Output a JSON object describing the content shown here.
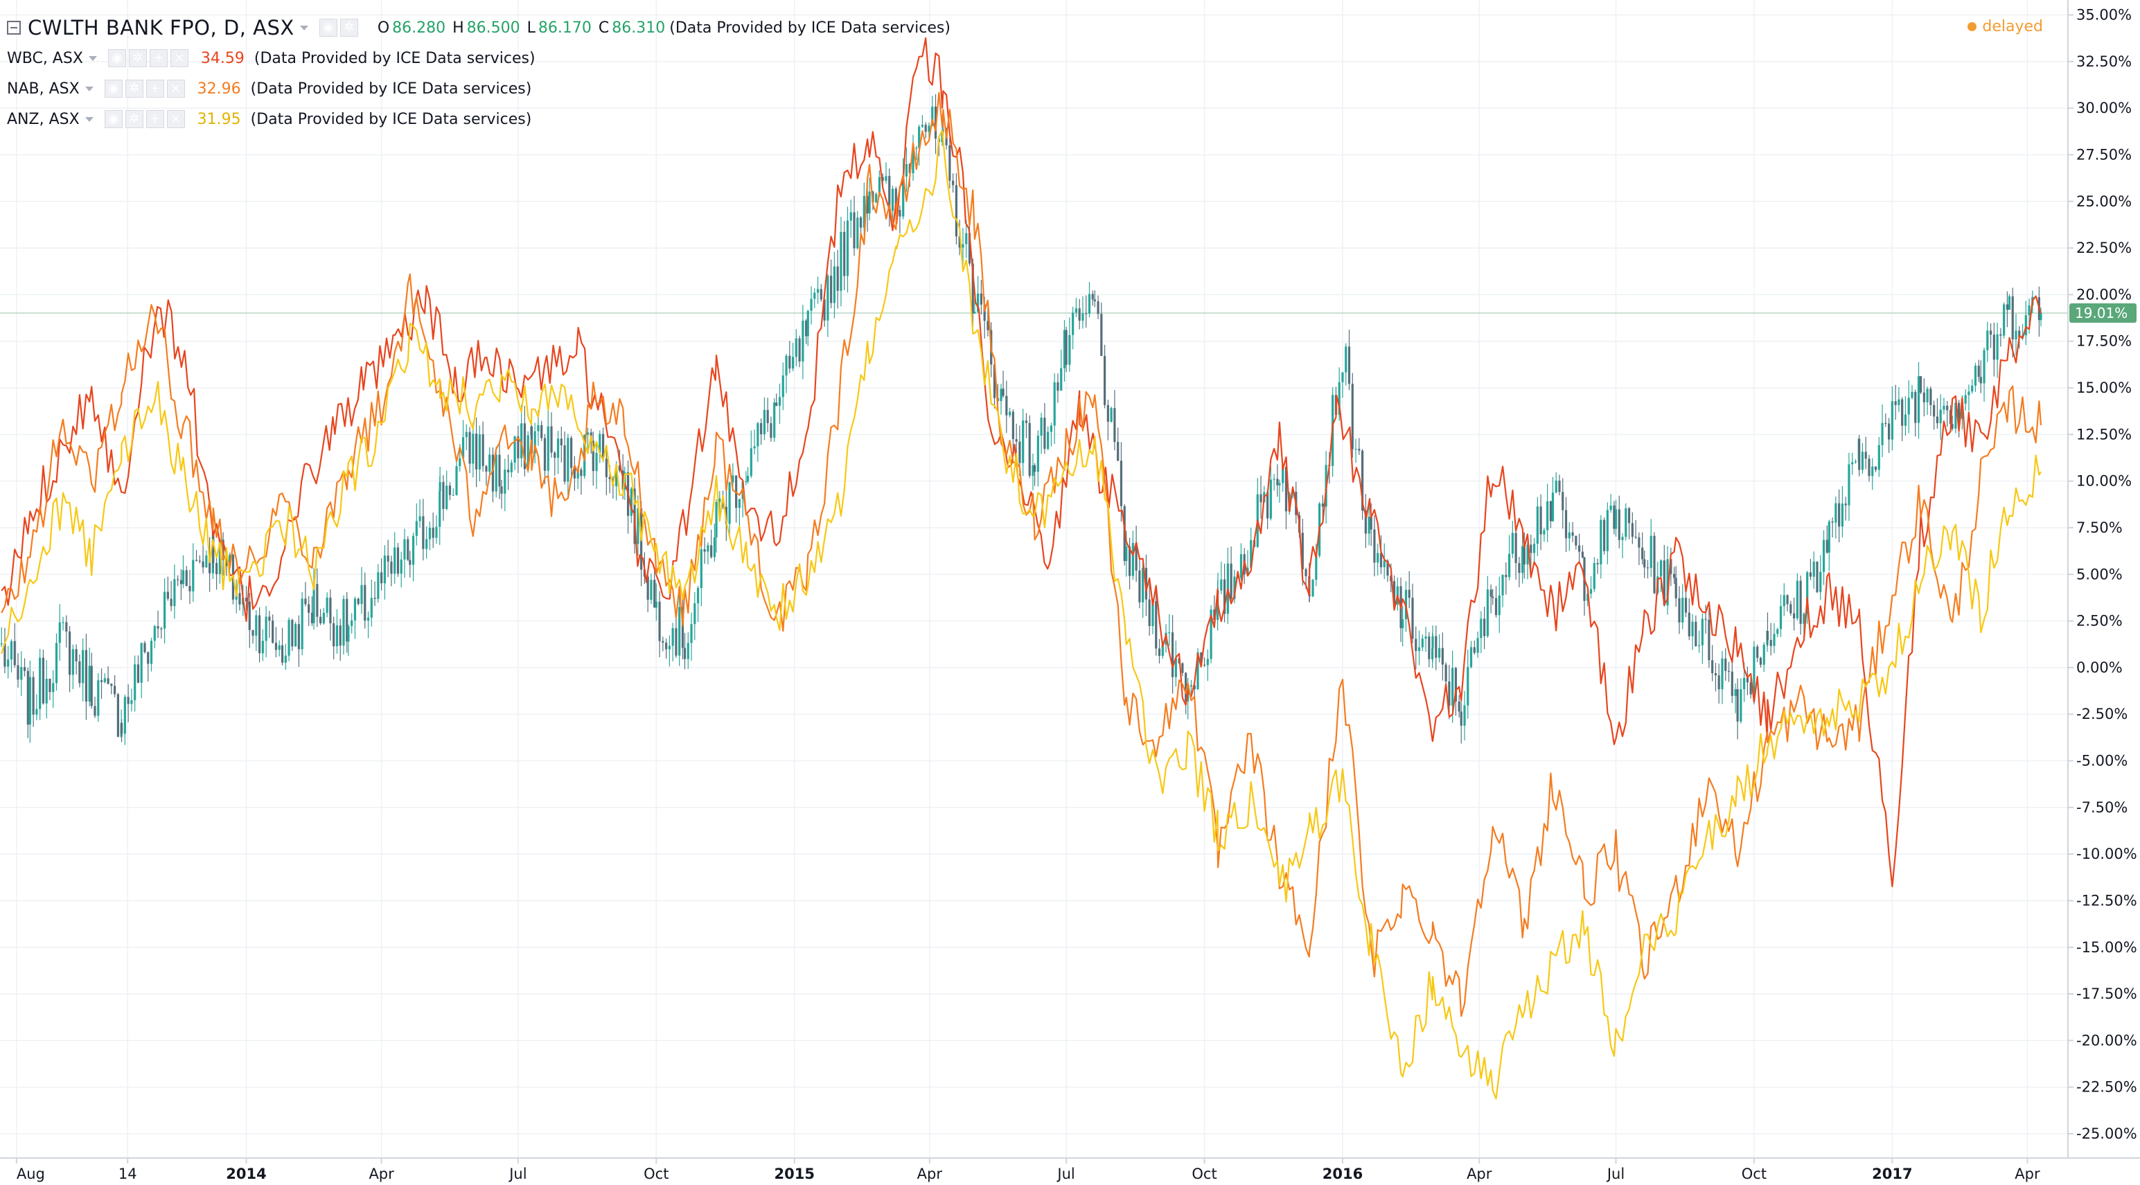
{
  "header": {
    "title": "CWLTH BANK FPO, D, ASX",
    "ohlc": [
      {
        "key": "O",
        "value": "86.280"
      },
      {
        "key": "H",
        "value": "86.500"
      },
      {
        "key": "L",
        "value": "86.170"
      },
      {
        "key": "C",
        "value": "86.310"
      }
    ],
    "provider": "(Data Provided by ICE Data services)",
    "status": "delayed"
  },
  "compare": [
    {
      "symbol": "WBC, ASX",
      "value": "34.59",
      "color": "#e8451e",
      "provider": "(Data Provided by ICE Data services)"
    },
    {
      "symbol": "NAB, ASX",
      "value": "32.96",
      "color": "#f57c1f",
      "provider": "(Data Provided by ICE Data services)"
    },
    {
      "symbol": "ANZ, ASX",
      "value": "31.95",
      "color": "#f7c815",
      "provider": "(Data Provided by ICE Data services)"
    }
  ],
  "colors": {
    "up": "#26a69a",
    "down": "#546e7a",
    "grid": "#eef1f5",
    "axis": "#d0d4db",
    "last_price_label": "#5aa77a",
    "text": "#131722"
  },
  "chart_data": {
    "type": "line",
    "x_axis_labels": [
      "Aug",
      "14",
      "2014",
      "Apr",
      "Jul",
      "Oct",
      "2015",
      "Apr",
      "Jul",
      "Oct",
      "2016",
      "Apr",
      "Jul",
      "Oct",
      "2017",
      "Apr"
    ],
    "x_axis_dates": [
      "2013-08-01",
      "2013-10-14",
      "2014-01-01",
      "2014-04-01",
      "2014-07-01",
      "2014-10-01",
      "2015-01-01",
      "2015-04-01",
      "2015-07-01",
      "2015-10-01",
      "2016-01-01",
      "2016-04-01",
      "2016-07-01",
      "2016-10-01",
      "2017-01-01",
      "2017-04-01"
    ],
    "y_ticks": [
      "35.00%",
      "32.50%",
      "30.00%",
      "27.50%",
      "25.00%",
      "22.50%",
      "20.00%",
      "17.50%",
      "15.00%",
      "12.50%",
      "10.00%",
      "7.50%",
      "5.00%",
      "2.50%",
      "0.00%",
      "-2.50%",
      "-5.00%",
      "-7.50%",
      "-10.00%",
      "-12.50%",
      "-15.00%",
      "-17.50%",
      "-20.00%",
      "-22.50%",
      "-25.00%"
    ],
    "ylim": [
      -26.3,
      35.8
    ],
    "xlim": [
      "2013-07-21",
      "2017-04-28"
    ],
    "last_value_label": "19.01%",
    "last_value": 19.01,
    "grid": true,
    "series": [
      {
        "name": "CWLTH BANK FPO, D, ASX",
        "style": "candles",
        "x": [
          "2013-07-22",
          "2013-08-10",
          "2013-09-01",
          "2013-09-20",
          "2013-10-10",
          "2013-11-01",
          "2013-11-20",
          "2013-12-10",
          "2014-01-01",
          "2014-01-25",
          "2014-02-15",
          "2014-03-10",
          "2014-04-01",
          "2014-04-20",
          "2014-05-10",
          "2014-06-01",
          "2014-06-20",
          "2014-07-10",
          "2014-08-01",
          "2014-08-20",
          "2014-09-10",
          "2014-10-01",
          "2014-10-20",
          "2014-11-10",
          "2014-12-01",
          "2014-12-20",
          "2015-01-10",
          "2015-02-01",
          "2015-02-20",
          "2015-03-10",
          "2015-03-25",
          "2015-04-10",
          "2015-05-01",
          "2015-05-20",
          "2015-06-10",
          "2015-07-01",
          "2015-07-20",
          "2015-08-10",
          "2015-09-01",
          "2015-09-20",
          "2015-10-10",
          "2015-11-01",
          "2015-11-20",
          "2015-12-10",
          "2016-01-01",
          "2016-01-20",
          "2016-02-10",
          "2016-03-01",
          "2016-03-20",
          "2016-04-10",
          "2016-05-01",
          "2016-05-20",
          "2016-06-10",
          "2016-07-01",
          "2016-07-20",
          "2016-08-10",
          "2016-09-01",
          "2016-09-20",
          "2016-10-10",
          "2016-11-01",
          "2016-11-20",
          "2016-12-10",
          "2017-01-01",
          "2017-01-20",
          "2017-02-10",
          "2017-03-01",
          "2017-03-20",
          "2017-04-10"
        ],
        "values": [
          1.0,
          -2.0,
          1.5,
          -1.0,
          -2.5,
          2.0,
          5.0,
          6.5,
          3.0,
          1.0,
          3.5,
          2.0,
          4.5,
          6.0,
          9.0,
          12.0,
          10.0,
          12.5,
          11.0,
          12.0,
          10.0,
          3.0,
          1.5,
          8.0,
          11.0,
          14.0,
          18.0,
          22.0,
          26.0,
          24.5,
          30.0,
          27.5,
          20.0,
          14.0,
          11.0,
          17.0,
          19.5,
          6.0,
          2.0,
          -1.0,
          3.0,
          7.0,
          11.0,
          5.0,
          17.0,
          6.0,
          3.0,
          0.5,
          -2.0,
          4.0,
          7.0,
          9.0,
          5.0,
          8.0,
          6.0,
          4.0,
          1.0,
          -1.5,
          2.0,
          3.5,
          7.0,
          11.0,
          13.0,
          15.0,
          14.0,
          16.0,
          19.0,
          19.01
        ]
      },
      {
        "name": "WBC, ASX",
        "style": "line",
        "color": "#e8451e",
        "x": [
          "2013-07-22",
          "2013-08-10",
          "2013-09-01",
          "2013-09-20",
          "2013-10-10",
          "2013-10-25",
          "2013-11-10",
          "2013-11-25",
          "2013-12-10",
          "2014-01-01",
          "2014-01-20",
          "2014-02-10",
          "2014-03-01",
          "2014-03-20",
          "2014-04-10",
          "2014-05-01",
          "2014-05-20",
          "2014-06-10",
          "2014-07-01",
          "2014-07-20",
          "2014-08-10",
          "2014-09-01",
          "2014-09-20",
          "2014-10-10",
          "2014-10-25",
          "2014-11-10",
          "2014-12-01",
          "2014-12-20",
          "2015-01-10",
          "2015-02-01",
          "2015-02-20",
          "2015-03-10",
          "2015-03-25",
          "2015-04-10",
          "2015-04-25",
          "2015-05-10",
          "2015-06-01",
          "2015-06-20",
          "2015-07-10",
          "2015-07-25",
          "2015-08-10",
          "2015-09-01",
          "2015-09-20",
          "2015-10-10",
          "2015-11-01",
          "2015-11-20",
          "2015-12-10",
          "2015-12-28",
          "2016-01-20",
          "2016-02-10",
          "2016-03-01",
          "2016-03-20",
          "2016-04-10",
          "2016-05-01",
          "2016-05-20",
          "2016-06-10",
          "2016-07-01",
          "2016-07-20",
          "2016-08-10",
          "2016-09-01",
          "2016-09-20",
          "2016-10-10",
          "2016-11-01",
          "2016-11-20",
          "2016-12-10",
          "2017-01-01",
          "2017-01-20",
          "2017-02-10",
          "2017-03-01",
          "2017-03-20",
          "2017-04-10"
        ],
        "values": [
          3.0,
          8.0,
          12.0,
          15.0,
          9.0,
          17.0,
          19.0,
          15.0,
          7.0,
          3.5,
          5.0,
          10.0,
          13.0,
          15.0,
          17.0,
          20.0,
          15.0,
          17.0,
          15.0,
          16.0,
          17.0,
          12.0,
          6.0,
          4.0,
          10.0,
          16.0,
          9.0,
          7.0,
          13.0,
          26.0,
          28.0,
          24.0,
          34.0,
          31.0,
          25.0,
          14.0,
          10.0,
          6.0,
          14.0,
          10.0,
          8.0,
          3.0,
          -2.0,
          3.0,
          6.0,
          12.0,
          4.0,
          14.0,
          8.0,
          3.0,
          -3.0,
          -1.0,
          11.0,
          7.0,
          3.0,
          5.0,
          -4.0,
          2.0,
          6.0,
          3.0,
          1.0,
          -3.0,
          2.0,
          4.0,
          2.0,
          -11.0,
          7.0,
          14.0,
          12.0,
          17.0,
          19.0
        ]
      },
      {
        "name": "NAB, ASX",
        "style": "line",
        "color": "#f57c1f",
        "x": [
          "2013-07-22",
          "2013-08-10",
          "2013-09-01",
          "2013-09-20",
          "2013-10-10",
          "2013-11-01",
          "2013-11-20",
          "2013-12-10",
          "2014-01-01",
          "2014-01-25",
          "2014-02-15",
          "2014-03-10",
          "2014-04-01",
          "2014-04-20",
          "2014-05-10",
          "2014-06-01",
          "2014-06-20",
          "2014-07-10",
          "2014-08-01",
          "2014-08-20",
          "2014-09-10",
          "2014-10-01",
          "2014-10-20",
          "2014-11-10",
          "2014-12-01",
          "2014-12-20",
          "2015-01-10",
          "2015-02-01",
          "2015-02-20",
          "2015-03-10",
          "2015-03-25",
          "2015-04-10",
          "2015-05-01",
          "2015-05-20",
          "2015-06-10",
          "2015-07-01",
          "2015-07-20",
          "2015-08-10",
          "2015-09-01",
          "2015-09-20",
          "2015-10-10",
          "2015-11-01",
          "2015-11-20",
          "2015-12-10",
          "2016-01-01",
          "2016-01-20",
          "2016-02-10",
          "2016-03-01",
          "2016-03-20",
          "2016-04-10",
          "2016-05-01",
          "2016-05-20",
          "2016-06-10",
          "2016-07-01",
          "2016-07-20",
          "2016-08-10",
          "2016-09-01",
          "2016-09-20",
          "2016-10-10",
          "2016-11-01",
          "2016-11-20",
          "2016-12-10",
          "2017-01-01",
          "2017-01-20",
          "2017-02-10",
          "2017-03-01",
          "2017-03-20",
          "2017-04-10"
        ],
        "values": [
          2.5,
          6.0,
          13.0,
          10.0,
          15.0,
          19.0,
          13.0,
          8.0,
          5.0,
          9.0,
          6.0,
          11.0,
          14.0,
          20.0,
          15.0,
          8.0,
          13.0,
          11.0,
          8.0,
          14.0,
          13.0,
          6.0,
          3.0,
          12.0,
          8.0,
          2.5,
          5.0,
          15.0,
          26.0,
          24.0,
          28.0,
          30.0,
          24.0,
          12.0,
          8.0,
          12.0,
          15.0,
          -2.0,
          -4.0,
          0.0,
          -10.0,
          -4.0,
          -11.0,
          -15.0,
          0.0,
          -16.0,
          -12.0,
          -14.0,
          -18.0,
          -8.0,
          -14.0,
          -6.0,
          -12.0,
          -10.0,
          -16.0,
          -12.0,
          -6.0,
          -10.0,
          -4.0,
          -2.0,
          -4.0,
          -3.0,
          4.0,
          9.0,
          2.0,
          10.0,
          14.0,
          13.0
        ]
      },
      {
        "name": "ANZ, ASX",
        "style": "line",
        "color": "#f7c815",
        "x": [
          "2013-07-22",
          "2013-08-10",
          "2013-09-01",
          "2013-09-20",
          "2013-10-10",
          "2013-11-01",
          "2013-11-20",
          "2013-12-10",
          "2014-01-01",
          "2014-01-25",
          "2014-02-15",
          "2014-03-10",
          "2014-04-01",
          "2014-04-20",
          "2014-05-10",
          "2014-06-01",
          "2014-06-20",
          "2014-07-10",
          "2014-08-01",
          "2014-08-20",
          "2014-09-10",
          "2014-10-01",
          "2014-10-20",
          "2014-11-10",
          "2014-12-01",
          "2014-12-20",
          "2015-01-10",
          "2015-02-01",
          "2015-02-20",
          "2015-03-10",
          "2015-03-25",
          "2015-04-10",
          "2015-05-01",
          "2015-05-20",
          "2015-06-10",
          "2015-07-01",
          "2015-07-20",
          "2015-08-10",
          "2015-09-01",
          "2015-09-20",
          "2015-10-10",
          "2015-11-01",
          "2015-11-20",
          "2015-12-10",
          "2016-01-01",
          "2016-01-20",
          "2016-02-10",
          "2016-03-01",
          "2016-03-20",
          "2016-04-10",
          "2016-05-01",
          "2016-05-20",
          "2016-06-10",
          "2016-07-01",
          "2016-07-20",
          "2016-08-10",
          "2016-09-01",
          "2016-09-20",
          "2016-10-10",
          "2016-11-01",
          "2016-11-20",
          "2016-12-10",
          "2017-01-01",
          "2017-01-20",
          "2017-02-10",
          "2017-03-01",
          "2017-03-20",
          "2017-04-10"
        ],
        "values": [
          1.0,
          4.0,
          9.0,
          6.0,
          11.0,
          15.0,
          10.0,
          6.0,
          4.0,
          8.0,
          5.0,
          10.0,
          13.0,
          18.0,
          15.0,
          14.0,
          15.0,
          14.0,
          15.0,
          12.0,
          10.0,
          6.0,
          4.0,
          9.0,
          6.0,
          3.0,
          5.0,
          9.0,
          17.0,
          22.0,
          24.0,
          28.0,
          18.0,
          12.0,
          8.0,
          10.0,
          12.0,
          2.0,
          -7.0,
          -4.0,
          -9.0,
          -7.0,
          -12.0,
          -9.0,
          -6.0,
          -15.0,
          -22.0,
          -17.0,
          -20.0,
          -23.0,
          -18.0,
          -16.0,
          -14.0,
          -20.0,
          -15.0,
          -13.0,
          -9.0,
          -7.0,
          -4.0,
          -3.0,
          -2.5,
          -2.0,
          0.0,
          5.0,
          7.0,
          3.0,
          9.0,
          10.5
        ]
      }
    ]
  }
}
